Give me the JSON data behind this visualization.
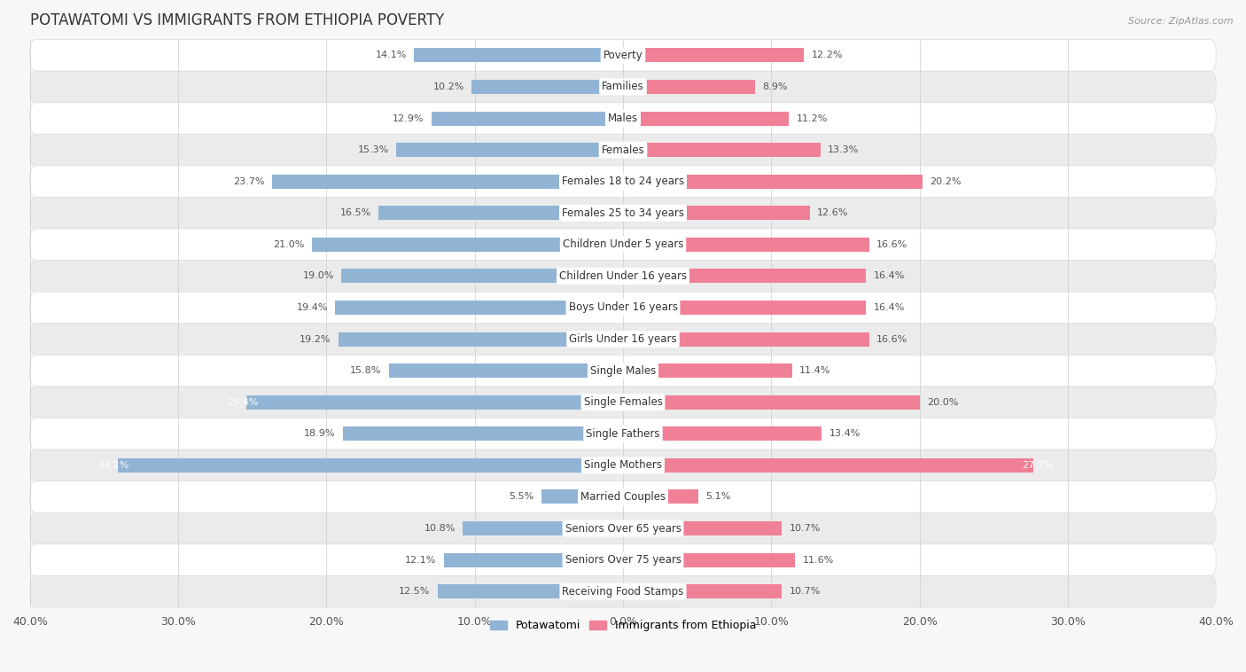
{
  "title": "POTAWATOMI VS IMMIGRANTS FROM ETHIOPIA POVERTY",
  "source": "Source: ZipAtlas.com",
  "categories": [
    "Poverty",
    "Families",
    "Males",
    "Females",
    "Females 18 to 24 years",
    "Females 25 to 34 years",
    "Children Under 5 years",
    "Children Under 16 years",
    "Boys Under 16 years",
    "Girls Under 16 years",
    "Single Males",
    "Single Females",
    "Single Fathers",
    "Single Mothers",
    "Married Couples",
    "Seniors Over 65 years",
    "Seniors Over 75 years",
    "Receiving Food Stamps"
  ],
  "left_values": [
    14.1,
    10.2,
    12.9,
    15.3,
    23.7,
    16.5,
    21.0,
    19.0,
    19.4,
    19.2,
    15.8,
    25.4,
    18.9,
    34.1,
    5.5,
    10.8,
    12.1,
    12.5
  ],
  "right_values": [
    12.2,
    8.9,
    11.2,
    13.3,
    20.2,
    12.6,
    16.6,
    16.4,
    16.4,
    16.6,
    11.4,
    20.0,
    13.4,
    27.7,
    5.1,
    10.7,
    11.6,
    10.7
  ],
  "left_color": "#91b4d5",
  "right_color": "#f08096",
  "background_color": "#f7f7f7",
  "row_even_color": "#ffffff",
  "row_odd_color": "#ebebeb",
  "axis_limit": 40.0,
  "left_label": "Potawatomi",
  "right_label": "Immigrants from Ethiopia",
  "title_fontsize": 12,
  "source_fontsize": 8,
  "tick_fontsize": 9,
  "value_fontsize": 8,
  "category_fontsize": 8.5,
  "bar_height": 0.45
}
